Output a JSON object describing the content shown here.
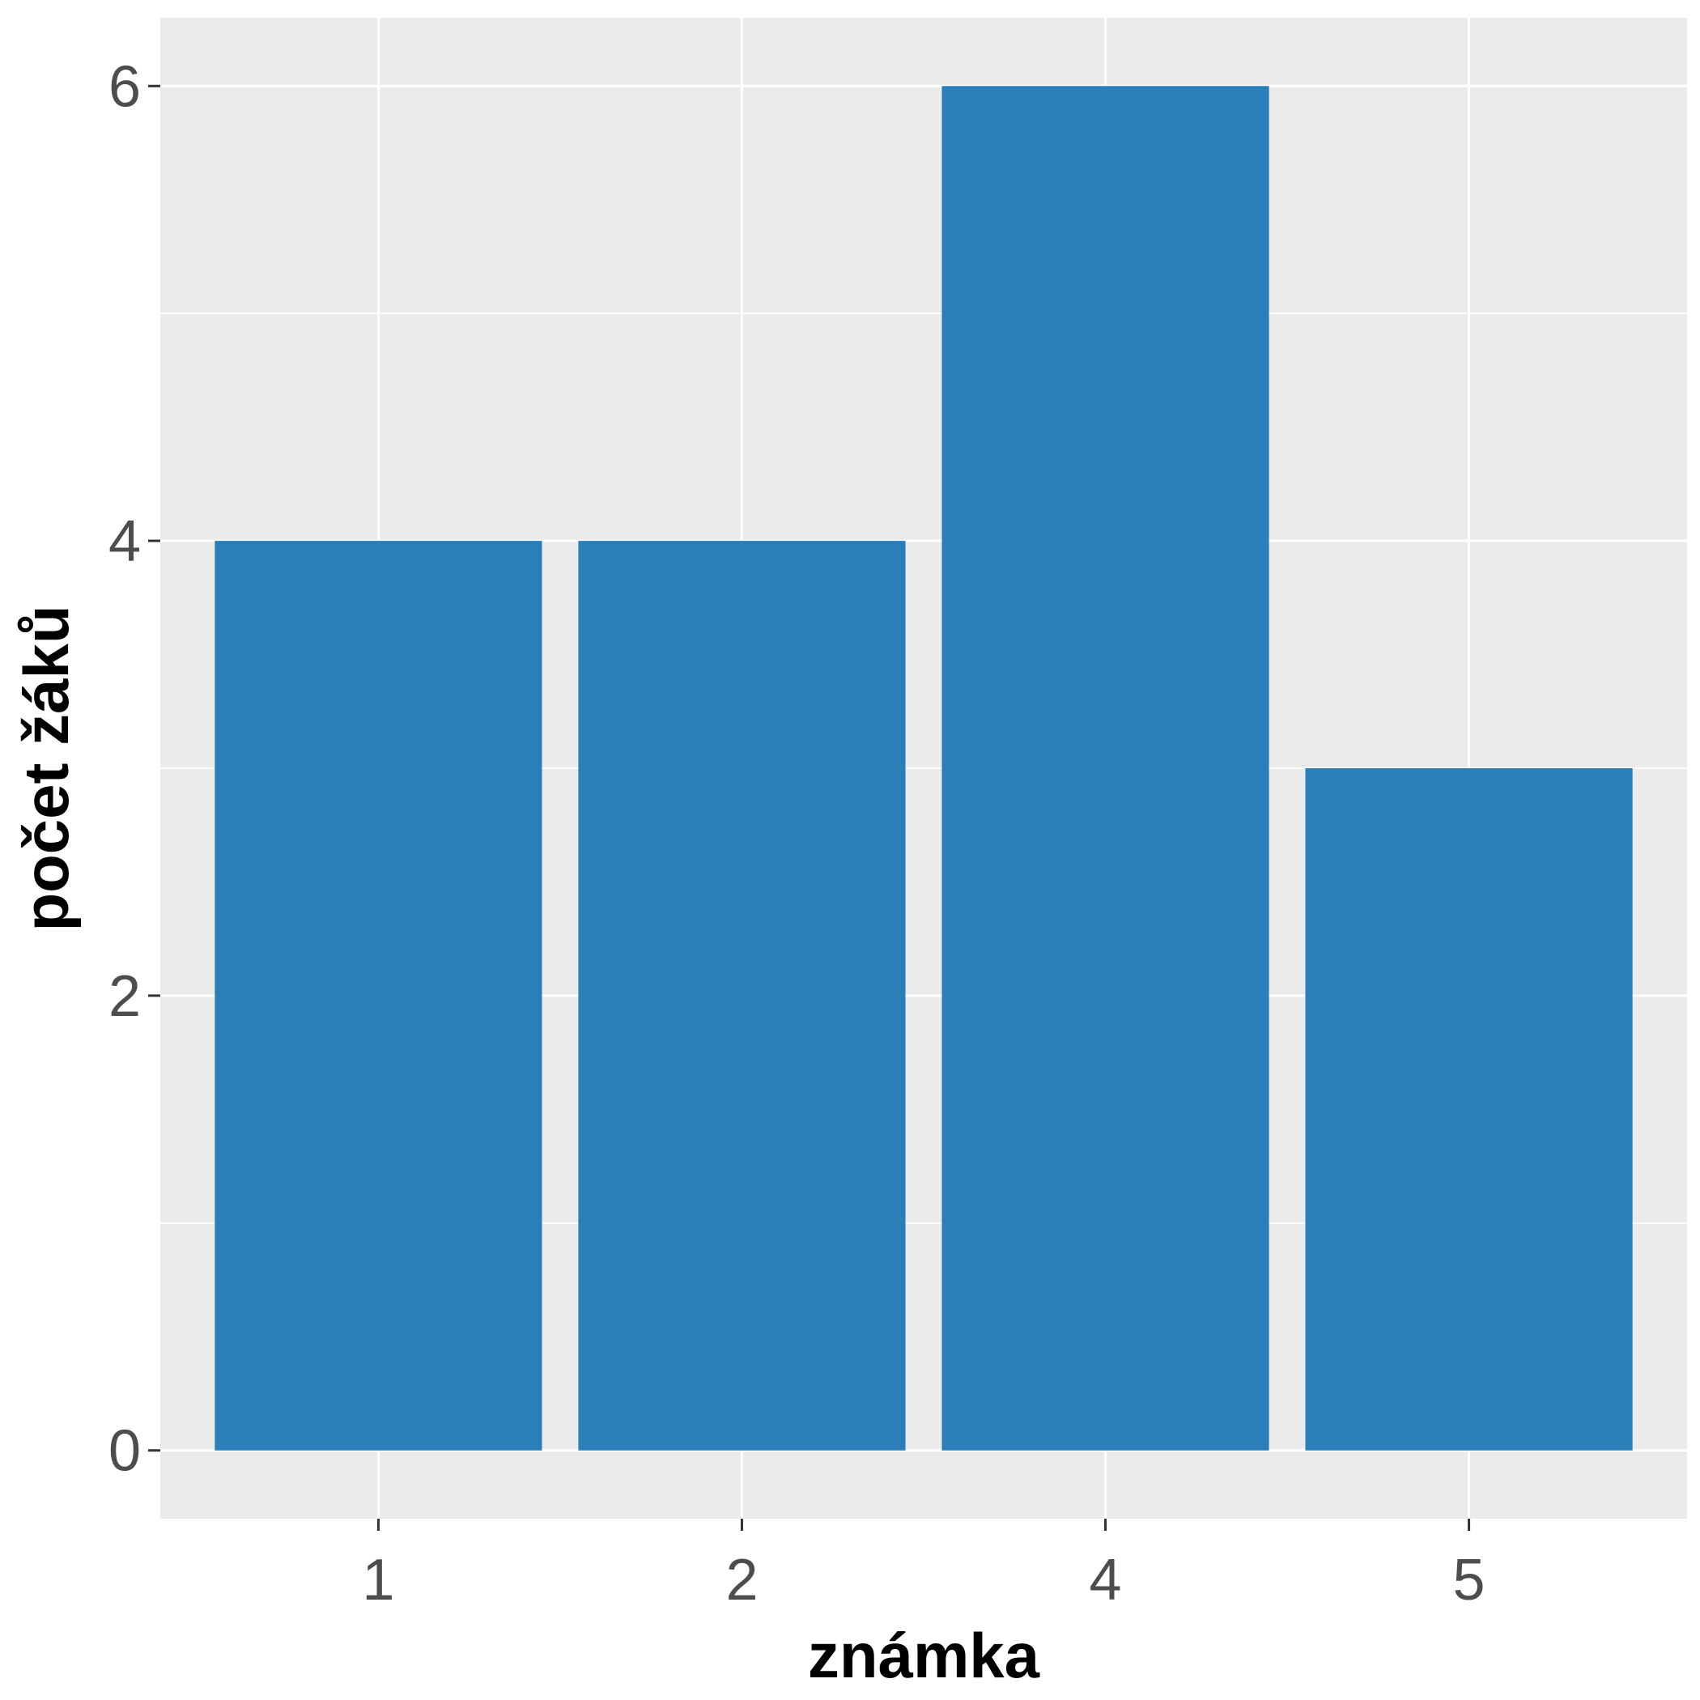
{
  "chart_data": {
    "type": "bar",
    "categories": [
      "1",
      "2",
      "4",
      "5"
    ],
    "values": [
      4,
      4,
      6,
      3
    ],
    "title": "",
    "xlabel": "známka",
    "ylabel": "počet žáků",
    "ylim": [
      -0.3,
      6.3
    ],
    "yticks": [
      0,
      2,
      4,
      6
    ],
    "ytick_labels": [
      "0",
      "2",
      "4",
      "6"
    ],
    "grid": true,
    "legend": "none",
    "colors": {
      "bar": "#2b7fb8",
      "panel": "#ebebeb",
      "grid": "#ffffff",
      "tick_label": "#4d4d4d",
      "axis_title": "#000000",
      "tick_mark": "#333333"
    }
  }
}
